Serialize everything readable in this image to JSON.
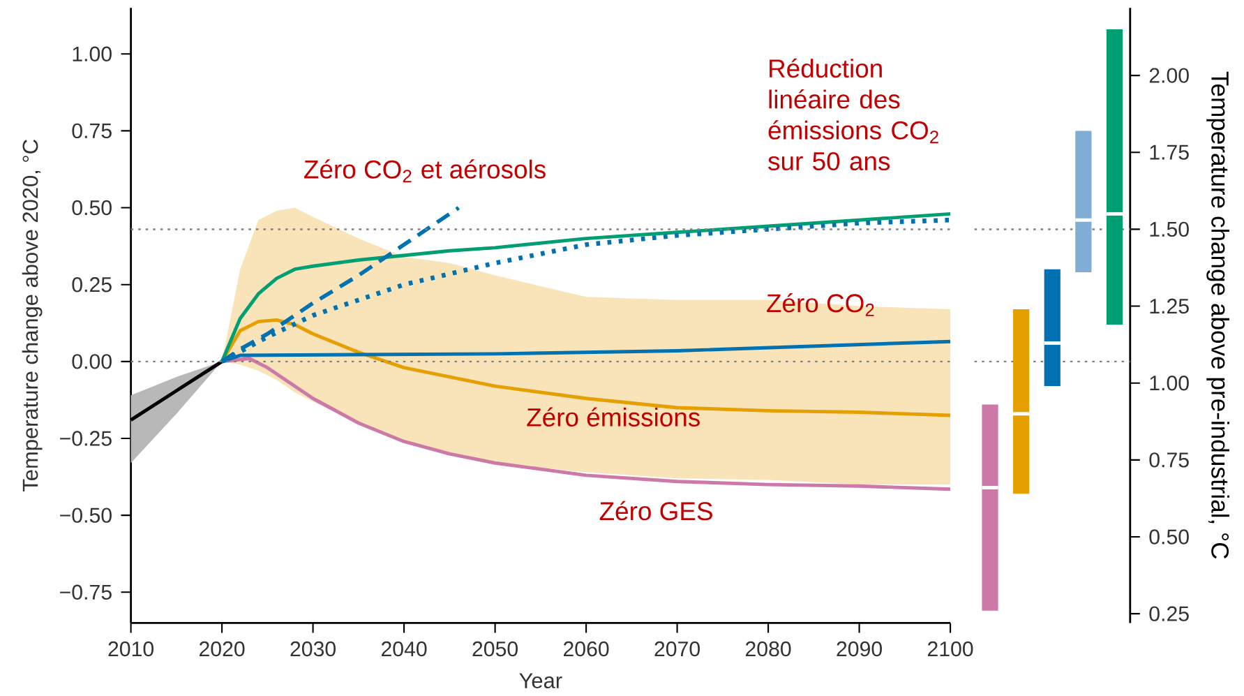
{
  "chart_data": [
    {
      "type": "line",
      "xlabel": "Year",
      "ylabel": "Temperature change above 2020, °C",
      "xlim": [
        2010,
        2100
      ],
      "ylim": [
        -0.85,
        1.15
      ],
      "xticks": [
        2010,
        2020,
        2030,
        2040,
        2050,
        2060,
        2070,
        2080,
        2090,
        2100
      ],
      "yticks": [
        {
          "value": -0.75,
          "label": "−0.75"
        },
        {
          "value": -0.5,
          "label": "−0.50"
        },
        {
          "value": -0.25,
          "label": "−0.25"
        },
        {
          "value": 0,
          "label": "0.00"
        },
        {
          "value": 0.25,
          "label": "0.25"
        },
        {
          "value": 0.5,
          "label": "0.50"
        },
        {
          "value": 0.75,
          "label": "0.75"
        },
        {
          "value": 1,
          "label": "1.00"
        }
      ],
      "ref_lines": [
        {
          "axis": "y",
          "value": 0,
          "color": "#808080",
          "line_style": "dotted"
        },
        {
          "axis": "y",
          "value": 0.43,
          "color": "#808080",
          "line_style": "dotted"
        }
      ],
      "series": [
        {
          "color": "#000000",
          "line_style": "solid",
          "x": [
            2010,
            2015,
            2020
          ],
          "values": [
            -0.19,
            -0.095,
            0
          ],
          "lower": [
            -0.33,
            -0.17,
            0
          ],
          "upper": [
            -0.11,
            -0.05,
            0
          ]
        },
        {
          "name": "Zéro émissions",
          "color": "#e69f00",
          "line_style": "solid",
          "x": [
            2020,
            2022,
            2024,
            2026,
            2028,
            2030,
            2035,
            2040,
            2045,
            2050,
            2060,
            2070,
            2080,
            2090,
            2100
          ],
          "values": [
            0,
            0.1,
            0.13,
            0.135,
            0.12,
            0.09,
            0.03,
            -0.02,
            -0.05,
            -0.08,
            -0.12,
            -0.15,
            -0.16,
            -0.165,
            -0.175
          ],
          "lower": [
            0,
            -0.01,
            -0.03,
            -0.06,
            -0.1,
            -0.13,
            -0.2,
            -0.26,
            -0.3,
            -0.33,
            -0.36,
            -0.38,
            -0.385,
            -0.4,
            -0.4
          ],
          "upper": [
            0,
            0.3,
            0.46,
            0.49,
            0.5,
            0.47,
            0.4,
            0.34,
            0.32,
            0.28,
            0.21,
            0.2,
            0.2,
            0.18,
            0.17
          ]
        },
        {
          "name": "Zéro GES",
          "color": "#cc79a7",
          "line_style": "solid",
          "x": [
            2020,
            2023,
            2025,
            2030,
            2035,
            2040,
            2045,
            2050,
            2060,
            2070,
            2080,
            2090,
            2100
          ],
          "values": [
            0,
            0.01,
            -0.02,
            -0.12,
            -0.2,
            -0.26,
            -0.3,
            -0.33,
            -0.37,
            -0.39,
            -0.4,
            -0.405,
            -0.415
          ]
        },
        {
          "name": "Zéro CO$_{2}$",
          "color": "#0072b2",
          "line_style": "solid",
          "x": [
            2020,
            2022,
            2050,
            2070,
            2080,
            2100
          ],
          "values": [
            0,
            0.02,
            0.025,
            0.035,
            0.045,
            0.065
          ]
        },
        {
          "color": "#009e73",
          "line_style": "solid",
          "x": [
            2020,
            2022,
            2024,
            2026,
            2028,
            2030,
            2035,
            2040,
            2045,
            2050,
            2060,
            2070,
            2080,
            2090,
            2100
          ],
          "values": [
            0,
            0.14,
            0.22,
            0.27,
            0.3,
            0.31,
            0.33,
            0.345,
            0.36,
            0.37,
            0.4,
            0.42,
            0.44,
            0.46,
            0.48
          ]
        },
        {
          "name": "Zéro CO$_{2}$ et aérosols",
          "color": "#0072b2",
          "line_style": "dashed",
          "x": [
            2020,
            2022,
            2025,
            2030,
            2035,
            2040,
            2046
          ],
          "values": [
            0,
            0.04,
            0.09,
            0.19,
            0.28,
            0.38,
            0.5
          ]
        },
        {
          "name": "Réduction linéaire des émissions CO$_{2}$ sur 50 ans",
          "color": "#0072b2",
          "line_style": "dotted",
          "x": [
            2020,
            2025,
            2030,
            2040,
            2050,
            2060,
            2070,
            2080,
            2090,
            2100
          ],
          "values": [
            0,
            0.08,
            0.15,
            0.25,
            0.32,
            0.38,
            0.41,
            0.43,
            0.45,
            0.46
          ]
        }
      ]
    },
    {
      "type": "box",
      "ylabel": "Temperature change above pre-industrial, °C",
      "categories": [
        null,
        null,
        null,
        null,
        null
      ],
      "ylim": [
        0.22,
        2.22
      ],
      "yticks": [
        {
          "value": 0.25,
          "label": "0.25"
        },
        {
          "value": 0.5,
          "label": "0.50"
        },
        {
          "value": 0.75,
          "label": "0.75"
        },
        {
          "value": 1,
          "label": "1.00"
        },
        {
          "value": 1.25,
          "label": "1.25"
        },
        {
          "value": 1.5,
          "label": "1.50"
        },
        {
          "value": 1.75,
          "label": "1.75"
        },
        {
          "value": 2,
          "label": "2.00"
        }
      ],
      "tick_labels": "y",
      "colors": [
        "#cc79a7",
        "#e69f00",
        "#0072b2",
        "#7fadd4",
        "#009e73"
      ],
      "ref_lines": [
        {
          "axis": "y",
          "value": 1.07,
          "color": "#808080",
          "line_style": "dotted"
        },
        {
          "axis": "y",
          "value": 1.5,
          "color": "#808080",
          "line_style": "dotted"
        }
      ],
      "boxes": [
        {
          "low": 0.26,
          "q1": 0.26,
          "median": 0.66,
          "q3": 0.93,
          "high": 0.93
        },
        {
          "low": 0.64,
          "q1": 0.64,
          "median": 0.9,
          "q3": 1.24,
          "high": 1.24
        },
        {
          "low": 0.99,
          "q1": 0.99,
          "median": 1.13,
          "q3": 1.37,
          "high": 1.37
        },
        {
          "low": 1.36,
          "q1": 1.36,
          "median": 1.53,
          "q3": 1.82,
          "high": 1.82
        },
        {
          "low": 1.19,
          "q1": 1.19,
          "median": 1.55,
          "q3": 2.15,
          "high": 2.15
        }
      ]
    }
  ]
}
